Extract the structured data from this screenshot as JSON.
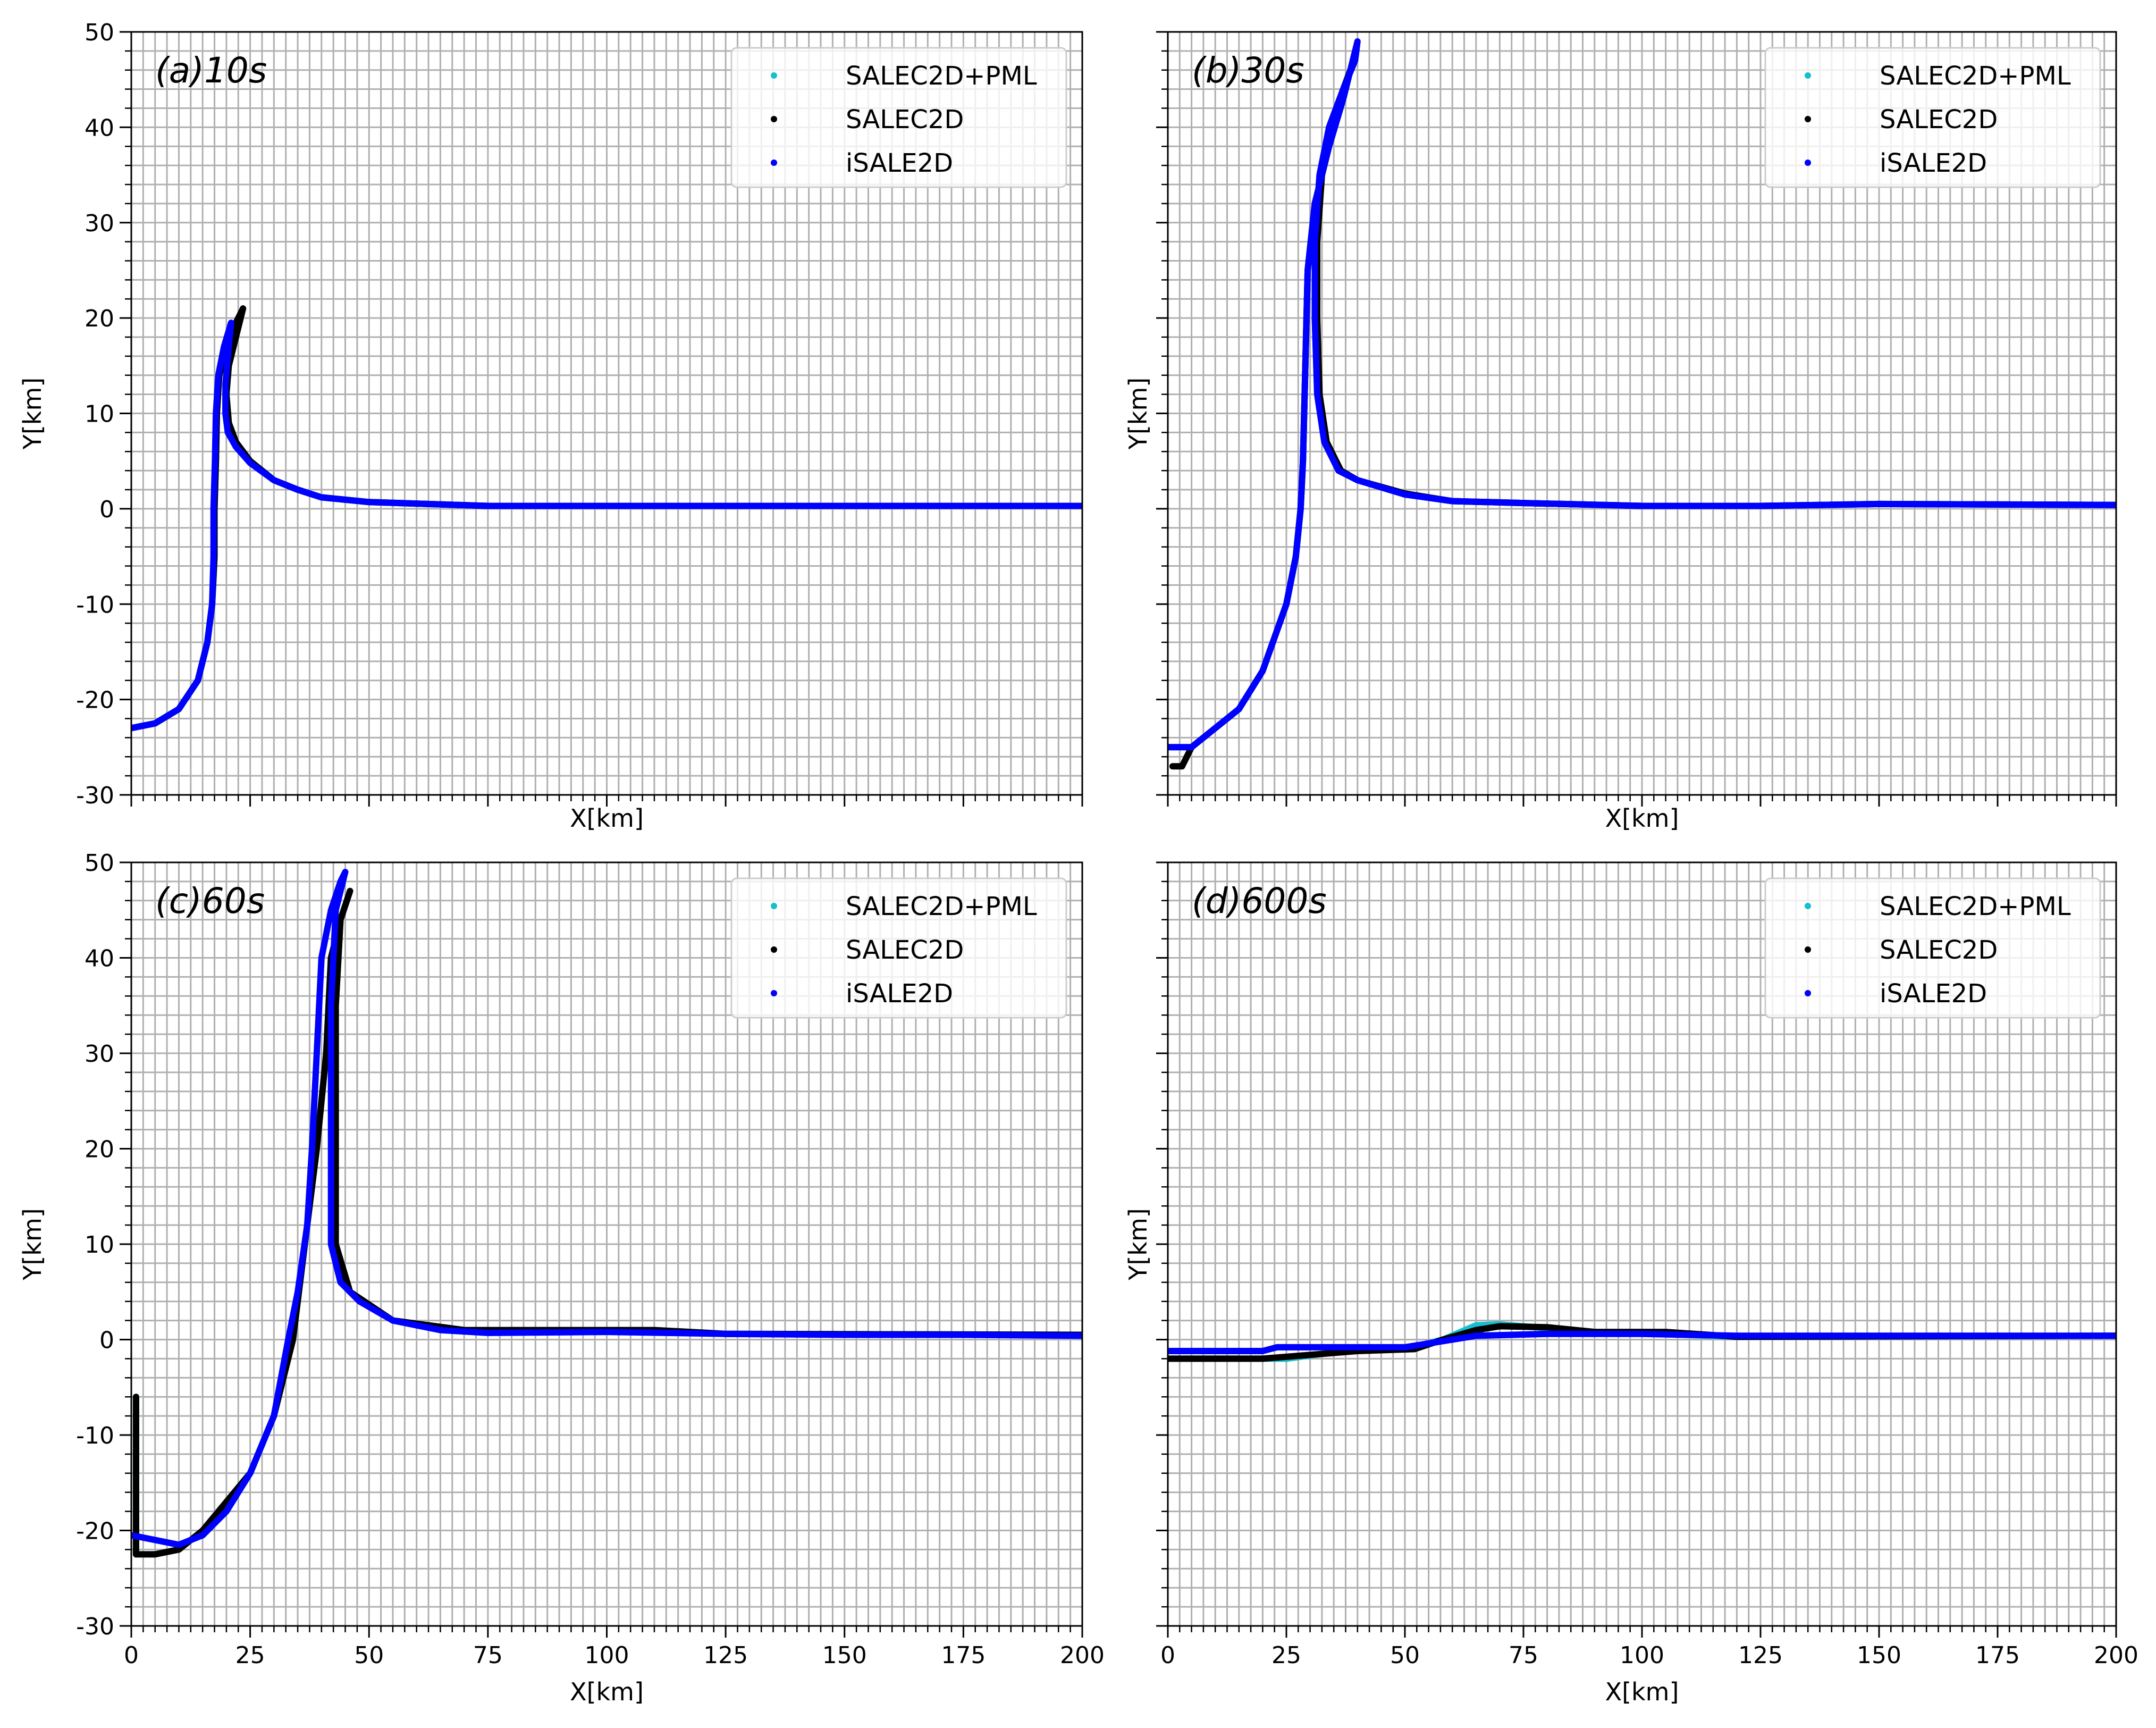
{
  "chart_data": [
    {
      "type": "line",
      "title": "(a)10s",
      "xlabel": "X[km]",
      "ylabel": "Y[km]",
      "xlim": [
        0,
        200
      ],
      "ylim": [
        -30,
        50
      ],
      "xticks": [
        0,
        25,
        50,
        75,
        100,
        125,
        150,
        175,
        200
      ],
      "yticks": [
        -30,
        -20,
        -10,
        0,
        10,
        20,
        30,
        40,
        50
      ],
      "show_xticklabels": false,
      "show_yticklabels": true,
      "grid": true,
      "legend": "upper right",
      "series": [
        {
          "name": "SALEC2D+PML",
          "color": "#17becf",
          "x": [
            0,
            5,
            10,
            14,
            16,
            17,
            17.5,
            17.5,
            17.8,
            18,
            18.5,
            20,
            22,
            23.5,
            22,
            20.5,
            20,
            20.5,
            22,
            25,
            30,
            35,
            40,
            50,
            75,
            100,
            200
          ],
          "values": [
            -23,
            -22.5,
            -21,
            -18,
            -14,
            -10,
            -5,
            0,
            5,
            10,
            14,
            17,
            19.5,
            21,
            18,
            15,
            12,
            9,
            7,
            5,
            3,
            2,
            1.2,
            0.7,
            0.3,
            0.3,
            0.3
          ]
        },
        {
          "name": "SALEC2D",
          "color": "#000000",
          "x": [
            0,
            5,
            10,
            14,
            16,
            17,
            17.5,
            17.5,
            17.8,
            18,
            18.5,
            20,
            22,
            23.5,
            22,
            20.5,
            20,
            20.5,
            22,
            25,
            30,
            35,
            40,
            50,
            75,
            100,
            200
          ],
          "values": [
            -23,
            -22.5,
            -21,
            -18,
            -14,
            -10,
            -5,
            0,
            5,
            10,
            14,
            17,
            19.5,
            21,
            18,
            15,
            12,
            9,
            7,
            5,
            3,
            2,
            1.2,
            0.7,
            0.3,
            0.3,
            0.3
          ]
        },
        {
          "name": "iSALE2D",
          "color": "#0000ff",
          "x": [
            0,
            5,
            10,
            14,
            16,
            17,
            17.3,
            17.3,
            17.6,
            17.8,
            18.3,
            19.5,
            21,
            20.3,
            19.8,
            19.8,
            20.3,
            22,
            25,
            30,
            35,
            40,
            50,
            75,
            100,
            200
          ],
          "values": [
            -23,
            -22.5,
            -21,
            -18,
            -14,
            -10,
            -5,
            0,
            5,
            10,
            14,
            17,
            19.5,
            16,
            13,
            10,
            8,
            6.5,
            4.8,
            3,
            2,
            1.2,
            0.7,
            0.3,
            0.3,
            0.3
          ]
        }
      ]
    },
    {
      "type": "line",
      "title": "(b)30s",
      "xlabel": "X[km]",
      "ylabel": "Y[km]",
      "xlim": [
        0,
        200
      ],
      "ylim": [
        -30,
        50
      ],
      "xticks": [
        0,
        25,
        50,
        75,
        100,
        125,
        150,
        175,
        200
      ],
      "yticks": [
        -30,
        -20,
        -10,
        0,
        10,
        20,
        30,
        40,
        50
      ],
      "show_xticklabels": false,
      "show_yticklabels": false,
      "grid": true,
      "legend": "upper right",
      "series": [
        {
          "name": "SALEC2D+PML",
          "color": "#17becf",
          "x": [
            0,
            5,
            10,
            15,
            20,
            25,
            27,
            28,
            28.5,
            29,
            29.5,
            31,
            34,
            37,
            38.5,
            37,
            34,
            32,
            31,
            31,
            31.5,
            33,
            36,
            40,
            50,
            60,
            75,
            100,
            125,
            150,
            200
          ],
          "values": [
            -25,
            -25,
            -23,
            -21,
            -17,
            -10,
            -5,
            0,
            5,
            15,
            25,
            32,
            38,
            43,
            46,
            44,
            40,
            35,
            28,
            20,
            12,
            7,
            4,
            3,
            1.5,
            0.8,
            0.6,
            0.3,
            0.3,
            0.5,
            0.4
          ]
        },
        {
          "name": "SALEC2D",
          "color": "#000000",
          "x": [
            1,
            3,
            5,
            10,
            15,
            20,
            25,
            27,
            28,
            28.5,
            29,
            29.5,
            31,
            34,
            37,
            38.5,
            37,
            34,
            32.5,
            31.5,
            31.5,
            32,
            33.5,
            36.5,
            40,
            50,
            60,
            75,
            100,
            125,
            150,
            200
          ],
          "values": [
            -27,
            -27,
            -25,
            -23,
            -21,
            -17,
            -10,
            -5,
            0,
            5,
            15,
            25,
            32,
            38,
            43,
            46,
            44,
            40,
            35,
            28,
            20,
            12,
            7,
            4,
            3,
            1.6,
            0.8,
            0.6,
            0.3,
            0.3,
            0.5,
            0.4
          ]
        },
        {
          "name": "iSALE2D",
          "color": "#0000ff",
          "x": [
            0,
            5,
            10,
            15,
            20,
            25,
            27,
            28,
            28.5,
            29,
            29.5,
            31,
            34,
            37,
            38.5,
            40,
            39.5,
            37,
            34,
            32,
            31,
            31,
            31.5,
            33,
            36,
            40,
            50,
            60,
            75,
            100,
            125,
            150,
            200
          ],
          "values": [
            -25,
            -25,
            -23,
            -21,
            -17,
            -10,
            -5,
            0,
            5,
            15,
            25,
            32,
            38,
            43,
            46,
            49,
            47,
            44,
            40,
            35,
            28,
            20,
            12,
            7,
            4,
            3,
            1.5,
            0.8,
            0.6,
            0.3,
            0.3,
            0.5,
            0.4
          ]
        }
      ]
    },
    {
      "type": "line",
      "title": "(c)60s",
      "xlabel": "X[km]",
      "ylabel": "Y[km]",
      "xlim": [
        0,
        200
      ],
      "ylim": [
        -30,
        50
      ],
      "xticks": [
        0,
        25,
        50,
        75,
        100,
        125,
        150,
        175,
        200
      ],
      "yticks": [
        -30,
        -20,
        -10,
        0,
        10,
        20,
        30,
        40,
        50
      ],
      "show_xticklabels": true,
      "show_yticklabels": true,
      "grid": true,
      "legend": "upper right",
      "series": [
        {
          "name": "SALEC2D+PML",
          "color": "#17becf",
          "x": [
            1,
            1,
            1,
            5,
            10,
            15,
            20,
            25,
            30,
            34,
            36,
            39,
            41,
            42,
            44,
            46,
            44,
            43,
            43,
            43,
            46,
            55,
            70,
            100,
            110,
            125,
            200
          ],
          "values": [
            -6,
            -15,
            -22.5,
            -22.5,
            -22,
            -20,
            -17,
            -14,
            -8,
            0,
            8,
            20,
            30,
            40,
            44,
            47,
            44,
            35,
            20,
            10,
            5,
            2,
            1,
            1,
            1,
            0.6,
            0.5
          ]
        },
        {
          "name": "SALEC2D",
          "color": "#000000",
          "x": [
            1,
            1,
            1,
            5,
            10,
            15,
            20,
            25,
            30,
            34,
            36,
            39,
            41,
            42,
            44,
            46,
            44,
            43,
            43,
            43,
            46,
            55,
            70,
            100,
            110,
            125,
            200
          ],
          "values": [
            -6,
            -15,
            -22.5,
            -22.5,
            -22,
            -20,
            -17,
            -14,
            -8,
            0,
            8,
            20,
            30,
            40,
            44,
            47,
            44,
            35,
            20,
            10,
            5,
            2,
            1,
            1,
            1,
            0.6,
            0.5
          ]
        },
        {
          "name": "iSALE2D",
          "color": "#0000ff",
          "x": [
            0,
            5,
            10,
            15,
            20,
            25,
            30,
            33,
            35,
            37,
            38,
            39,
            40,
            42,
            44,
            45,
            43,
            42,
            42,
            42,
            44,
            48,
            55,
            65,
            75,
            100,
            125,
            150,
            175,
            200
          ],
          "values": [
            -20.5,
            -21,
            -21.5,
            -20.5,
            -18,
            -14,
            -8,
            0,
            5,
            12,
            20,
            30,
            40,
            45,
            48,
            49,
            45,
            35,
            20,
            10,
            6,
            4,
            2,
            1,
            0.7,
            0.8,
            0.6,
            0.5,
            0.5,
            0.4
          ]
        }
      ]
    },
    {
      "type": "line",
      "title": "(d)600s",
      "xlabel": "X[km]",
      "ylabel": "Y[km]",
      "xlim": [
        0,
        200
      ],
      "ylim": [
        -30,
        50
      ],
      "xticks": [
        0,
        25,
        50,
        75,
        100,
        125,
        150,
        175,
        200
      ],
      "yticks": [
        -30,
        -20,
        -10,
        0,
        10,
        20,
        30,
        40,
        50
      ],
      "show_xticklabels": true,
      "show_yticklabels": false,
      "grid": true,
      "legend": "upper right",
      "series": [
        {
          "name": "SALEC2D+PML",
          "color": "#17becf",
          "x": [
            0,
            25,
            40,
            50,
            58,
            65,
            70,
            80,
            90,
            120,
            200
          ],
          "values": [
            -2,
            -2,
            -1,
            -1,
            0,
            1.5,
            1.6,
            1.2,
            0.8,
            0.3,
            0.4
          ]
        },
        {
          "name": "SALEC2D",
          "color": "#000000",
          "x": [
            0,
            20,
            40,
            52,
            58,
            65,
            70,
            80,
            90,
            105,
            120,
            200
          ],
          "values": [
            -2,
            -2,
            -1.2,
            -1,
            0,
            1,
            1.4,
            1.3,
            0.8,
            0.8,
            0.3,
            0.4
          ]
        },
        {
          "name": "iSALE2D",
          "color": "#0000ff",
          "x": [
            0,
            20,
            23,
            50,
            55,
            65,
            80,
            100,
            120,
            200
          ],
          "values": [
            -1.2,
            -1.2,
            -0.8,
            -0.8,
            -0.4,
            0.4,
            0.6,
            0.6,
            0.4,
            0.4
          ]
        }
      ]
    }
  ]
}
